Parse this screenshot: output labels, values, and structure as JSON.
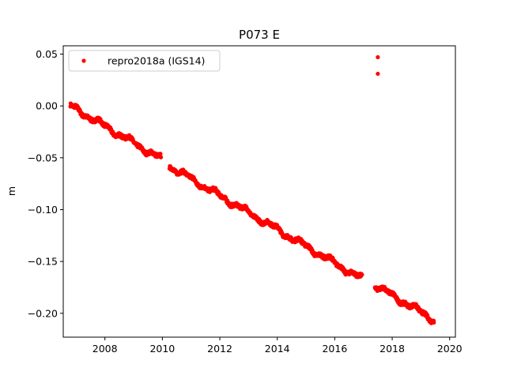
{
  "chart_data": {
    "type": "scatter",
    "title": "P073 E",
    "xlabel": "",
    "ylabel": "m",
    "xlim": [
      2006.55,
      2020.2
    ],
    "ylim": [
      -0.223,
      0.058
    ],
    "xticks": [
      2008,
      2010,
      2012,
      2014,
      2016,
      2018,
      2020
    ],
    "xtick_labels": [
      "2008",
      "2010",
      "2012",
      "2014",
      "2016",
      "2018",
      "2020"
    ],
    "yticks": [
      0.05,
      0.0,
      -0.05,
      -0.1,
      -0.15,
      -0.2
    ],
    "ytick_labels": [
      "0.05",
      "0.00",
      "−0.05",
      "−0.10",
      "−0.15",
      "−0.20"
    ],
    "legend": {
      "position": "top-left",
      "entries": [
        "repro2018a (IGS14)"
      ]
    },
    "grid": false,
    "marker_color": "#ff0000",
    "series": [
      {
        "name": "repro2018a (IGS14)",
        "trend_segments": [
          {
            "x": [
              2006.8,
              2009.95
            ],
            "y": [
              0.0,
              -0.051
            ]
          },
          {
            "x": [
              2010.25,
              2016.95
            ],
            "y": [
              -0.058,
              -0.167
            ]
          },
          {
            "x": [
              2017.4,
              2019.45
            ],
            "y": [
              -0.173,
              -0.206
            ]
          }
        ],
        "outliers": [
          {
            "x": 2017.5,
            "y": 0.047
          },
          {
            "x": 2017.5,
            "y": 0.031
          }
        ]
      }
    ]
  }
}
